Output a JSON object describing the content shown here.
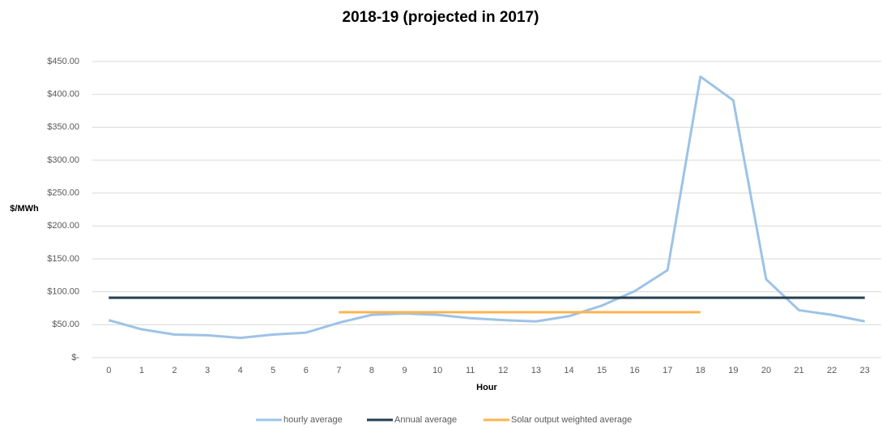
{
  "chart_data": {
    "type": "line",
    "title": "2018-19 (projected in 2017)",
    "x_label": "Hour",
    "y_label": "$/MWh",
    "categories": [
      0,
      1,
      2,
      3,
      4,
      5,
      6,
      7,
      8,
      9,
      10,
      11,
      12,
      13,
      14,
      15,
      16,
      17,
      18,
      19,
      20,
      21,
      22,
      23
    ],
    "series": [
      {
        "name": "hourly average",
        "color": "#9dc3e6",
        "values": [
          57,
          43,
          35,
          34,
          30,
          35,
          38,
          53,
          65,
          67,
          65,
          60,
          57,
          55,
          63,
          79,
          101,
          133,
          427,
          391,
          119,
          72,
          65,
          55
        ]
      },
      {
        "name": "Annual average",
        "color": "#243f4f",
        "values": [
          91,
          91,
          91,
          91,
          91,
          91,
          91,
          91,
          91,
          91,
          91,
          91,
          91,
          91,
          91,
          91,
          91,
          91,
          91,
          91,
          91,
          91,
          91,
          91
        ]
      },
      {
        "name": "Solar output weighted average",
        "color": "#ffb34f",
        "values": [
          null,
          null,
          null,
          null,
          null,
          null,
          null,
          69,
          69,
          69,
          69,
          69,
          69,
          69,
          69,
          69,
          69,
          69,
          69,
          null,
          null,
          null,
          null,
          null
        ]
      }
    ],
    "ylim": [
      0,
      450
    ],
    "yticks": [
      {
        "value": 0,
        "label": "$-"
      },
      {
        "value": 50,
        "label": "$50.00"
      },
      {
        "value": 100,
        "label": "$100.00"
      },
      {
        "value": 150,
        "label": "$150.00"
      },
      {
        "value": 200,
        "label": "$200.00"
      },
      {
        "value": 250,
        "label": "$250.00"
      },
      {
        "value": 300,
        "label": "$300.00"
      },
      {
        "value": 350,
        "label": "$350.00"
      },
      {
        "value": 400,
        "label": "$400.00"
      },
      {
        "value": 450,
        "label": "$450.00"
      }
    ],
    "grid": true,
    "legend": "bottom"
  }
}
